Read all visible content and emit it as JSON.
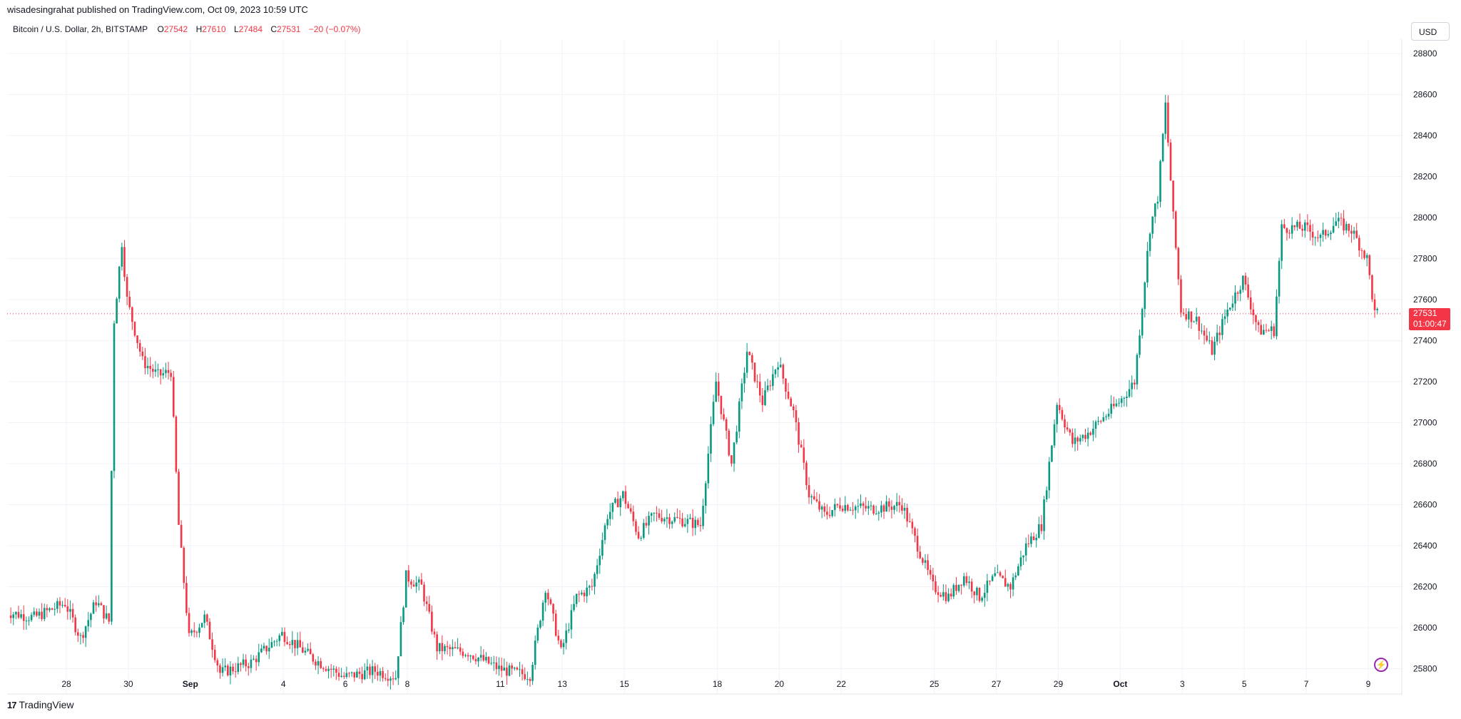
{
  "header": {
    "published": "wisadesingrahat published on TradingView.com, Oct 09, 2023 10:59 UTC"
  },
  "legend": {
    "symbol": "Bitcoin / U.S. Dollar, 2h, BITSTAMP",
    "o_label": "O",
    "o_value": "27542",
    "h_label": "H",
    "h_value": "27610",
    "l_label": "L",
    "l_value": "27484",
    "c_label": "C",
    "c_value": "27531",
    "change": "−20 (−0.07%)"
  },
  "currency_button": "USD",
  "current_price": {
    "value": "27531",
    "countdown": "01:00:47"
  },
  "footer": {
    "logo_mark": "17",
    "brand": "TradingView"
  },
  "colors": {
    "up": "#089981",
    "down": "#f23645",
    "grid": "#f0f3fa",
    "axis_text": "#131722"
  },
  "icons": {
    "bolt": "lightning-icon"
  },
  "chart_data": {
    "type": "candlestick",
    "interval": "2h",
    "y_axis": {
      "side": "right",
      "range": [
        25680,
        28870
      ],
      "ticks": [
        25800,
        26000,
        26200,
        26400,
        26600,
        26800,
        27000,
        27200,
        27400,
        27600,
        27800,
        28000,
        28200,
        28400,
        28600,
        28800
      ]
    },
    "x_axis": {
      "ticks": [
        {
          "label": "28",
          "date": "2023-08-28"
        },
        {
          "label": "30",
          "date": "2023-08-30"
        },
        {
          "label": "Sep",
          "date": "2023-09-01",
          "bold": true
        },
        {
          "label": "4",
          "date": "2023-09-04"
        },
        {
          "label": "6",
          "date": "2023-09-06"
        },
        {
          "label": "8",
          "date": "2023-09-08"
        },
        {
          "label": "11",
          "date": "2023-09-11"
        },
        {
          "label": "13",
          "date": "2023-09-13"
        },
        {
          "label": "15",
          "date": "2023-09-15"
        },
        {
          "label": "18",
          "date": "2023-09-18"
        },
        {
          "label": "20",
          "date": "2023-09-20"
        },
        {
          "label": "22",
          "date": "2023-09-22"
        },
        {
          "label": "25",
          "date": "2023-09-25"
        },
        {
          "label": "27",
          "date": "2023-09-27"
        },
        {
          "label": "29",
          "date": "2023-09-29"
        },
        {
          "label": "Oct",
          "date": "2023-10-01",
          "bold": true
        },
        {
          "label": "3",
          "date": "2023-10-03"
        },
        {
          "label": "5",
          "date": "2023-10-05"
        },
        {
          "label": "7",
          "date": "2023-10-07"
        },
        {
          "label": "9",
          "date": "2023-10-09"
        }
      ]
    },
    "current_price_line": 27531,
    "price_path": [
      [
        "2023-08-26",
        26080
      ],
      [
        "2023-08-27",
        26050
      ],
      [
        "2023-08-28",
        26120
      ],
      [
        "2023-08-28T12",
        25950
      ],
      [
        "2023-08-29",
        26130
      ],
      [
        "2023-08-29T10",
        26030
      ],
      [
        "2023-08-29T14",
        27500
      ],
      [
        "2023-08-29T20",
        27880
      ],
      [
        "2023-08-30",
        27600
      ],
      [
        "2023-08-30T12",
        27300
      ],
      [
        "2023-08-31",
        27230
      ],
      [
        "2023-08-31T10",
        27250
      ],
      [
        "2023-08-31T16",
        26500
      ],
      [
        "2023-09-01",
        25950
      ],
      [
        "2023-09-01T12",
        26050
      ],
      [
        "2023-09-02",
        25780
      ],
      [
        "2023-09-03",
        25830
      ],
      [
        "2023-09-04",
        25970
      ],
      [
        "2023-09-05",
        25850
      ],
      [
        "2023-09-06",
        25760
      ],
      [
        "2023-09-07",
        25790
      ],
      [
        "2023-09-07T16",
        25760
      ],
      [
        "2023-09-08",
        26250
      ],
      [
        "2023-09-08T12",
        26200
      ],
      [
        "2023-09-09",
        25900
      ],
      [
        "2023-09-10",
        25880
      ],
      [
        "2023-09-11",
        25800
      ],
      [
        "2023-09-11T12",
        25780
      ],
      [
        "2023-09-12",
        25770
      ],
      [
        "2023-09-12T12",
        26200
      ],
      [
        "2023-09-13",
        25880
      ],
      [
        "2023-09-13T12",
        26150
      ],
      [
        "2023-09-14",
        26200
      ],
      [
        "2023-09-14T12",
        26550
      ],
      [
        "2023-09-15",
        26650
      ],
      [
        "2023-09-15T12",
        26450
      ],
      [
        "2023-09-16",
        26550
      ],
      [
        "2023-09-17",
        26520
      ],
      [
        "2023-09-17T12",
        26500
      ],
      [
        "2023-09-18",
        27200
      ],
      [
        "2023-09-18T12",
        26800
      ],
      [
        "2023-09-19",
        27350
      ],
      [
        "2023-09-19T12",
        27100
      ],
      [
        "2023-09-20",
        27300
      ],
      [
        "2023-09-20T12",
        27050
      ],
      [
        "2023-09-21",
        26650
      ],
      [
        "2023-09-21T12",
        26550
      ],
      [
        "2023-09-22",
        26600
      ],
      [
        "2023-09-23",
        26580
      ],
      [
        "2023-09-24",
        26600
      ],
      [
        "2023-09-25",
        26200
      ],
      [
        "2023-09-25T12",
        26150
      ],
      [
        "2023-09-26",
        26250
      ],
      [
        "2023-09-26T12",
        26150
      ],
      [
        "2023-09-27",
        26250
      ],
      [
        "2023-09-27T12",
        26200
      ],
      [
        "2023-09-28",
        26400
      ],
      [
        "2023-09-28T12",
        26500
      ],
      [
        "2023-09-29",
        27100
      ],
      [
        "2023-09-29T12",
        26900
      ],
      [
        "2023-09-30",
        26950
      ],
      [
        "2023-10-01",
        27100
      ],
      [
        "2023-10-01T12",
        27200
      ],
      [
        "2023-10-02",
        27950
      ],
      [
        "2023-10-02T06",
        28100
      ],
      [
        "2023-10-02T12",
        28550
      ],
      [
        "2023-10-02T18",
        28000
      ],
      [
        "2023-10-03",
        27550
      ],
      [
        "2023-10-03T12",
        27500
      ],
      [
        "2023-10-04",
        27350
      ],
      [
        "2023-10-04T12",
        27550
      ],
      [
        "2023-10-05",
        27700
      ],
      [
        "2023-10-05T12",
        27450
      ],
      [
        "2023-10-06",
        27450
      ],
      [
        "2023-10-06T06",
        27950
      ],
      [
        "2023-10-06T12",
        27950
      ],
      [
        "2023-10-07",
        27950
      ],
      [
        "2023-10-07T12",
        27900
      ],
      [
        "2023-10-08",
        27980
      ],
      [
        "2023-10-08T12",
        27940
      ],
      [
        "2023-10-09",
        27800
      ],
      [
        "2023-10-09T06",
        27531
      ]
    ]
  }
}
